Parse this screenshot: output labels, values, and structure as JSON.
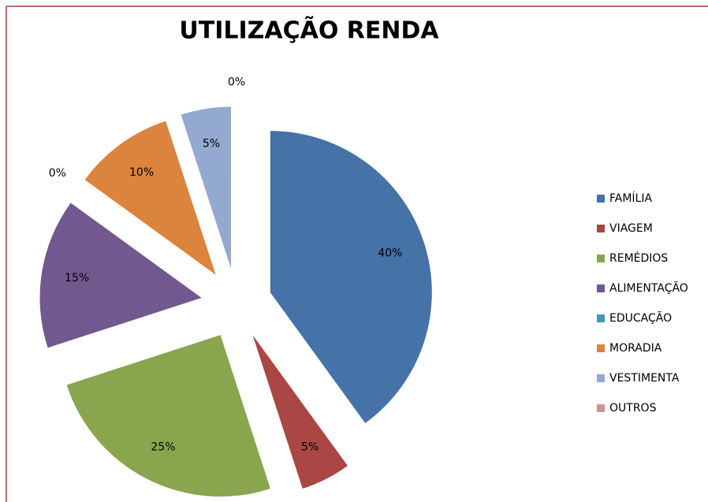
{
  "chart_data": {
    "type": "pie",
    "title": "UTILIZAÇÃO RENDA",
    "categories": [
      "FAMÍLIA",
      "VIAGEM",
      "REMÉDIOS",
      "ALIMENTAÇÃO",
      "EDUCAÇÃO",
      "MORADIA",
      "VESTIMENTA",
      "OUTROS"
    ],
    "values": [
      40,
      5,
      25,
      15,
      0,
      10,
      5,
      0
    ],
    "value_labels": [
      "40%",
      "5%",
      "25%",
      "15%",
      "0%",
      "10%",
      "5%",
      "0%"
    ],
    "colors": [
      "#4572a7",
      "#aa4643",
      "#89a54e",
      "#71588f",
      "#4198af",
      "#db843d",
      "#93a9cf",
      "#d19392"
    ],
    "legend": "right"
  }
}
